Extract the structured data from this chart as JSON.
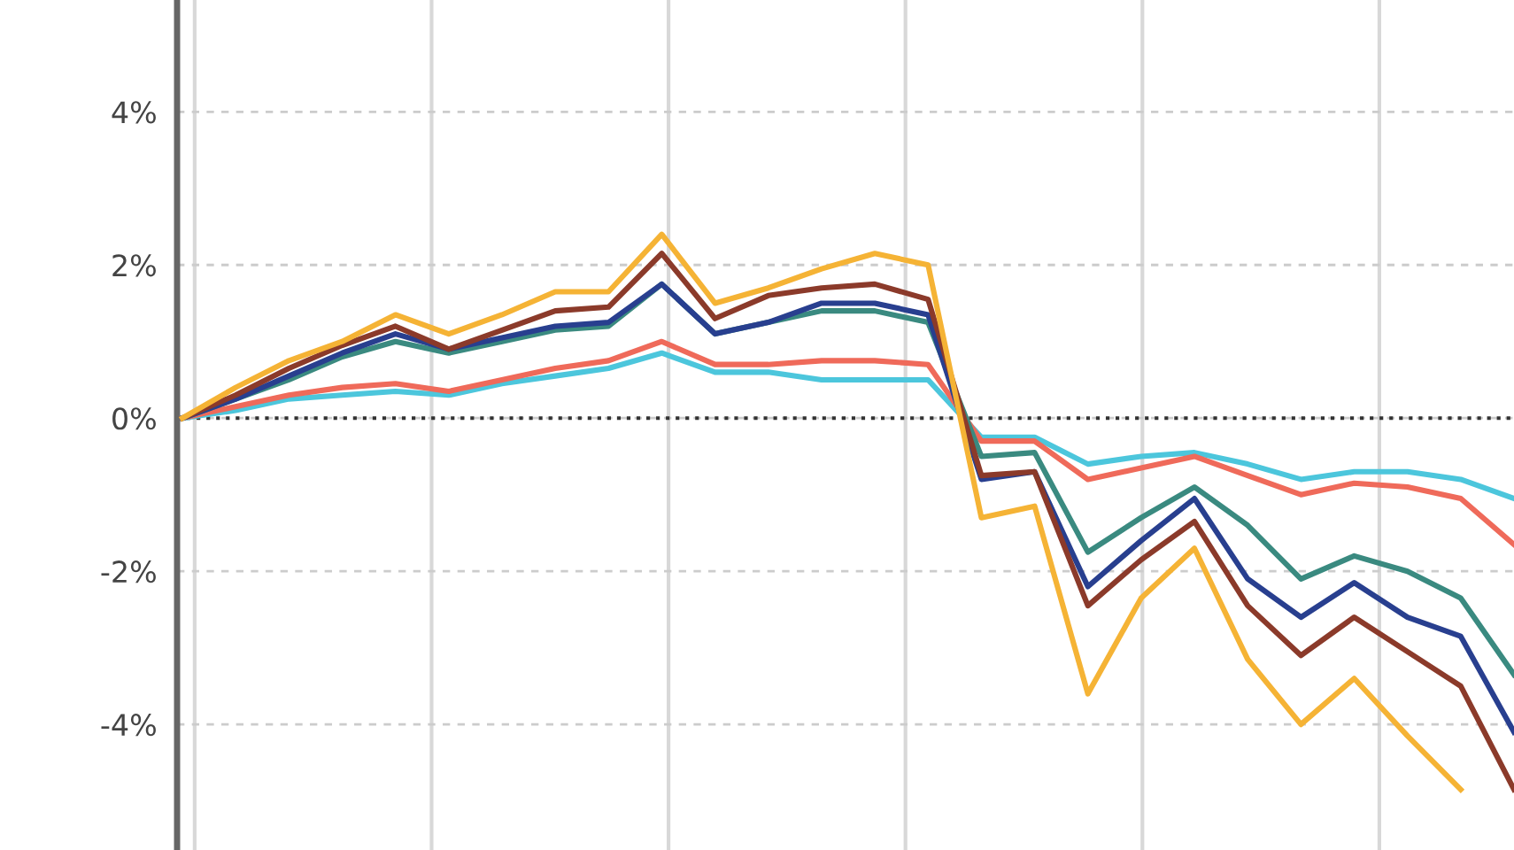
{
  "chart_data": {
    "type": "line",
    "categories": [
      null,
      null,
      null,
      null,
      null,
      null,
      null,
      null,
      null,
      null,
      null,
      null,
      null,
      null,
      null,
      null,
      null,
      null,
      null,
      null,
      null,
      null,
      null,
      null,
      null,
      null
    ],
    "ylim": [
      -5.64,
      5.46
    ],
    "yticks": [
      {
        "value": -4,
        "label": "-4%"
      },
      {
        "value": -2,
        "label": "-2%"
      },
      {
        "value": 0,
        "label": "0%"
      },
      {
        "value": 2,
        "label": "2%"
      },
      {
        "value": 4,
        "label": "4%"
      }
    ],
    "tick_labels": "y",
    "grid": true,
    "legend": false,
    "line_style": "solid",
    "marker": "none",
    "ref_lines": [
      {
        "axis": "y",
        "value": 0,
        "color": "#333333",
        "line_style": "dotted"
      }
    ],
    "series": [
      {
        "color": "#4cc6dc",
        "values": [
          0,
          0.1,
          0.25,
          0.3,
          0.35,
          0.3,
          0.45,
          0.55,
          0.65,
          0.85,
          0.6,
          0.6,
          0.5,
          0.5,
          0.5,
          -0.25,
          -0.25,
          -0.6,
          -0.5,
          -0.45,
          -0.6,
          -0.8,
          -0.7,
          -0.7,
          -0.8,
          -1.05
        ]
      },
      {
        "color": "#ef6a5a",
        "values": [
          0,
          0.15,
          0.3,
          0.4,
          0.45,
          0.35,
          0.5,
          0.65,
          0.75,
          1.0,
          0.7,
          0.7,
          0.75,
          0.75,
          0.7,
          -0.3,
          -0.3,
          -0.8,
          -0.65,
          -0.5,
          -0.75,
          -1.0,
          -0.85,
          -0.9,
          -1.05,
          -1.65
        ]
      },
      {
        "color": "#3a8a80",
        "values": [
          0,
          0.25,
          0.5,
          0.8,
          1.0,
          0.85,
          1.0,
          1.15,
          1.2,
          1.75,
          1.1,
          1.25,
          1.4,
          1.4,
          1.25,
          -0.5,
          -0.45,
          -1.75,
          -1.3,
          -0.9,
          -1.4,
          -2.1,
          -1.8,
          -2.0,
          -2.35,
          -3.35
        ]
      },
      {
        "color": "#283f8f",
        "values": [
          0,
          0.25,
          0.55,
          0.85,
          1.1,
          0.9,
          1.05,
          1.2,
          1.25,
          1.75,
          1.1,
          1.25,
          1.5,
          1.5,
          1.35,
          -0.8,
          -0.7,
          -2.2,
          -1.6,
          -1.05,
          -2.1,
          -2.6,
          -2.15,
          -2.6,
          -2.85,
          -4.1
        ]
      },
      {
        "color": "#8b3a2a",
        "values": [
          0,
          0.3,
          0.65,
          0.95,
          1.2,
          0.9,
          1.15,
          1.4,
          1.45,
          2.15,
          1.3,
          1.6,
          1.7,
          1.75,
          1.55,
          -0.75,
          -0.7,
          -2.45,
          -1.85,
          -1.35,
          -2.45,
          -3.1,
          -2.6,
          -3.05,
          -3.5,
          -4.85
        ]
      },
      {
        "color": "#f5b335",
        "values": [
          0,
          0.4,
          0.75,
          1.0,
          1.35,
          1.1,
          1.35,
          1.65,
          1.65,
          2.4,
          1.5,
          1.7,
          1.95,
          2.15,
          2.0,
          -1.3,
          -1.15,
          -3.6,
          -2.35,
          -1.7,
          -3.15,
          -4.0,
          -3.4,
          -4.15,
          -4.85,
          null
        ]
      }
    ]
  }
}
